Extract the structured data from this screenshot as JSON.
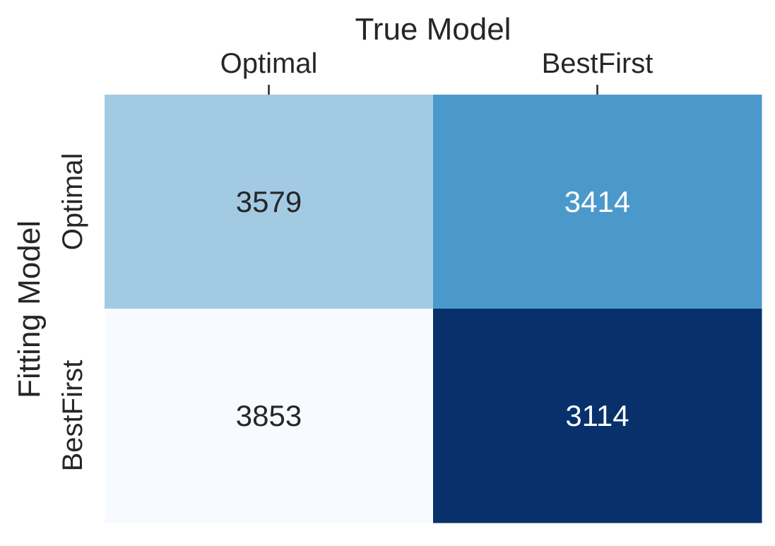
{
  "chart_data": {
    "type": "heatmap",
    "title": "",
    "xlabel": "True Model",
    "ylabel": "Fitting Model",
    "x_categories": [
      "Optimal",
      "BestFirst"
    ],
    "y_categories": [
      "Optimal",
      "BestFirst"
    ],
    "x_axis_position": "top",
    "values": [
      [
        3579,
        3414
      ],
      [
        3853,
        3114
      ]
    ],
    "colormap": "Blues",
    "value_range": [
      3114,
      3853
    ],
    "annotate_cells": true,
    "colors": {
      "cells": [
        [
          "#a3cae3",
          "#4b99ca"
        ],
        [
          "#f7fbff",
          "#08306b"
        ]
      ],
      "cell_text": [
        [
          "#262626",
          "#ffffff"
        ],
        [
          "#262626",
          "#ffffff"
        ]
      ],
      "label_color": "#262626"
    },
    "grid": false,
    "legend": "none"
  }
}
